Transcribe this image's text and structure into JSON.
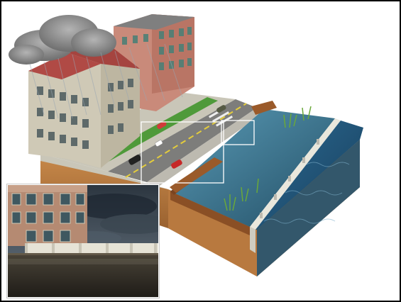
{
  "figure": {
    "colors": {
      "water": "#2f6f8c",
      "water_deep": "#1f4f66",
      "soil": "#b97a3c",
      "soil_dark": "#8a5527",
      "grass": "#4f9a3a",
      "road": "#7a7a78",
      "building_brick": "#c98a7a",
      "building_stone": "#cfc9b6",
      "roof_red": "#b04a45",
      "floodwall": "#e9e7dc",
      "cloud": "#8e8e8e"
    },
    "icons": [
      "storm-cloud-icon",
      "car-icon"
    ],
    "inset_view": "floodwall-closeup"
  }
}
